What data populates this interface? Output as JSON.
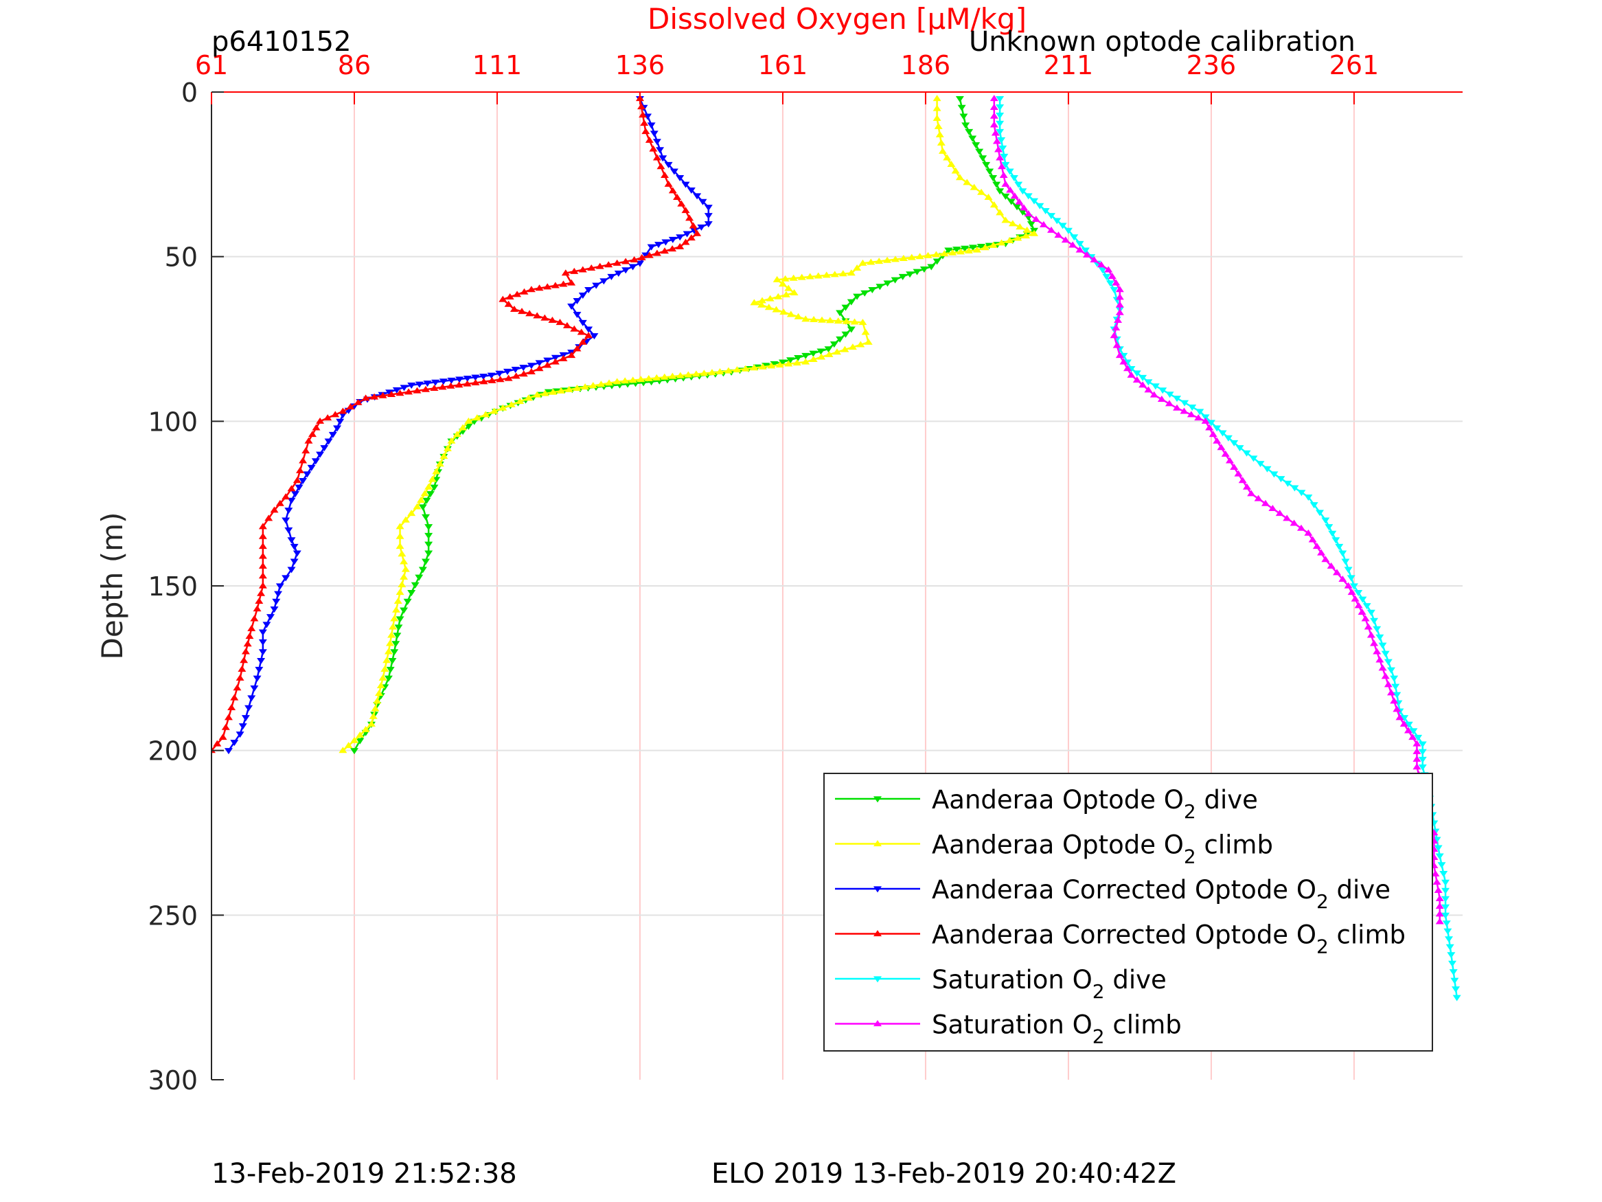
{
  "header": {
    "profile_id": "p6410152",
    "calibration_note": "Unknown optode calibration"
  },
  "footer": {
    "left_timestamp": "13-Feb-2019 21:52:38",
    "right_label": "ELO 2019 13-Feb-2019 20:40:42Z"
  },
  "chart_data": {
    "type": "line",
    "title": "",
    "xlabel": "Dissolved Oxygen [μM/kg]",
    "ylabel": "Depth (m)",
    "xlim": [
      61,
      280
    ],
    "ylim": [
      0,
      300
    ],
    "y_reversed": true,
    "x_axis_position": "top",
    "xticks": [
      61,
      86,
      111,
      136,
      161,
      186,
      211,
      236,
      261
    ],
    "yticks": [
      0,
      50,
      100,
      150,
      200,
      250,
      300
    ],
    "grid": true,
    "legend_position": "bottom-right",
    "series": [
      {
        "name": "Aanderaa Optode O2 dive",
        "legend_base": "Aanderaa Optode O",
        "legend_sub": "2",
        "legend_tail": " dive",
        "color": "#00e000",
        "marker": "triangle-down",
        "points": [
          [
            192,
            2
          ],
          [
            193,
            10
          ],
          [
            196,
            20
          ],
          [
            199,
            30
          ],
          [
            204,
            38
          ],
          [
            205,
            42
          ],
          [
            200,
            46
          ],
          [
            190,
            48
          ],
          [
            187,
            53
          ],
          [
            182,
            56
          ],
          [
            174,
            62
          ],
          [
            171,
            67
          ],
          [
            173,
            72
          ],
          [
            169,
            78
          ],
          [
            161,
            82
          ],
          [
            152,
            85
          ],
          [
            138,
            88
          ],
          [
            120,
            91
          ],
          [
            112,
            96
          ],
          [
            107,
            100
          ],
          [
            103,
            106
          ],
          [
            101,
            113
          ],
          [
            100,
            120
          ],
          [
            98,
            126
          ],
          [
            99,
            132
          ],
          [
            99,
            140
          ],
          [
            98,
            145
          ],
          [
            96,
            152
          ],
          [
            94,
            160
          ],
          [
            93,
            170
          ],
          [
            92,
            178
          ],
          [
            90,
            186
          ],
          [
            89,
            192
          ],
          [
            87,
            197
          ],
          [
            86,
            200
          ]
        ]
      },
      {
        "name": "Aanderaa Optode O2 climb",
        "legend_base": "Aanderaa Optode O",
        "legend_sub": "2",
        "legend_tail": " climb",
        "color": "#ffff00",
        "marker": "triangle-up",
        "points": [
          [
            84,
            200
          ],
          [
            86,
            197
          ],
          [
            89,
            192
          ],
          [
            90,
            185
          ],
          [
            91,
            178
          ],
          [
            92,
            170
          ],
          [
            93,
            160
          ],
          [
            94,
            152
          ],
          [
            95,
            145
          ],
          [
            94,
            138
          ],
          [
            94,
            132
          ],
          [
            97,
            126
          ],
          [
            99,
            120
          ],
          [
            101,
            113
          ],
          [
            103,
            106
          ],
          [
            106,
            100
          ],
          [
            112,
            96
          ],
          [
            118,
            92
          ],
          [
            132,
            88
          ],
          [
            150,
            85
          ],
          [
            165,
            82
          ],
          [
            176,
            76
          ],
          [
            175,
            70
          ],
          [
            165,
            69
          ],
          [
            156,
            64
          ],
          [
            163,
            61
          ],
          [
            160,
            57
          ],
          [
            173,
            55
          ],
          [
            175,
            52
          ],
          [
            195,
            48
          ],
          [
            205,
            43
          ],
          [
            200,
            39
          ],
          [
            197,
            32
          ],
          [
            192,
            26
          ],
          [
            189,
            18
          ],
          [
            188,
            8
          ],
          [
            188,
            2
          ]
        ]
      },
      {
        "name": "Aanderaa Corrected Optode O2 dive",
        "legend_base": "Aanderaa Corrected Optode O",
        "legend_sub": "2",
        "legend_tail": " dive",
        "color": "#0000ff",
        "marker": "triangle-down",
        "points": [
          [
            136,
            2
          ],
          [
            138,
            10
          ],
          [
            140,
            20
          ],
          [
            144,
            28
          ],
          [
            148,
            35
          ],
          [
            148,
            40
          ],
          [
            143,
            44
          ],
          [
            138,
            47
          ],
          [
            136,
            52
          ],
          [
            131,
            56
          ],
          [
            127,
            60
          ],
          [
            124,
            65
          ],
          [
            126,
            70
          ],
          [
            128,
            74
          ],
          [
            124,
            79
          ],
          [
            117,
            83
          ],
          [
            110,
            86
          ],
          [
            96,
            89
          ],
          [
            87,
            94
          ],
          [
            84,
            98
          ],
          [
            83,
            102
          ],
          [
            80,
            110
          ],
          [
            77,
            118
          ],
          [
            75,
            124
          ],
          [
            74,
            130
          ],
          [
            75,
            136
          ],
          [
            76,
            140
          ],
          [
            75,
            145
          ],
          [
            73,
            150
          ],
          [
            72,
            157
          ],
          [
            70,
            164
          ],
          [
            70,
            170
          ],
          [
            69,
            178
          ],
          [
            68,
            184
          ],
          [
            67,
            190
          ],
          [
            66,
            195
          ],
          [
            64,
            200
          ]
        ]
      },
      {
        "name": "Aanderaa Corrected Optode O2 climb",
        "legend_base": "Aanderaa Corrected Optode O",
        "legend_sub": "2",
        "legend_tail": " climb",
        "color": "#ff0000",
        "marker": "triangle-up",
        "points": [
          [
            61,
            200
          ],
          [
            63,
            196
          ],
          [
            64,
            190
          ],
          [
            65,
            184
          ],
          [
            66,
            178
          ],
          [
            67,
            170
          ],
          [
            68,
            163
          ],
          [
            69,
            157
          ],
          [
            70,
            150
          ],
          [
            70,
            144
          ],
          [
            70,
            138
          ],
          [
            70,
            132
          ],
          [
            72,
            127
          ],
          [
            74,
            123
          ],
          [
            76,
            118
          ],
          [
            77,
            112
          ],
          [
            78,
            106
          ],
          [
            80,
            100
          ],
          [
            84,
            97
          ],
          [
            88,
            93
          ],
          [
            100,
            90
          ],
          [
            113,
            87
          ],
          [
            117,
            85
          ],
          [
            124,
            80
          ],
          [
            127,
            74
          ],
          [
            122,
            70
          ],
          [
            114,
            66
          ],
          [
            112,
            63
          ],
          [
            117,
            60
          ],
          [
            124,
            58
          ],
          [
            123,
            55
          ],
          [
            135,
            51
          ],
          [
            143,
            47
          ],
          [
            146,
            43
          ],
          [
            144,
            36
          ],
          [
            141,
            28
          ],
          [
            139,
            20
          ],
          [
            137,
            12
          ],
          [
            136,
            2
          ]
        ]
      },
      {
        "name": "Saturation O2 dive",
        "legend_base": "Saturation O",
        "legend_sub": "2",
        "legend_tail": " dive",
        "color": "#00ffff",
        "marker": "triangle-down",
        "points": [
          [
            199,
            2
          ],
          [
            199,
            12
          ],
          [
            200,
            22
          ],
          [
            203,
            30
          ],
          [
            207,
            36
          ],
          [
            211,
            42
          ],
          [
            214,
            48
          ],
          [
            217,
            54
          ],
          [
            219,
            60
          ],
          [
            220,
            66
          ],
          [
            219,
            72
          ],
          [
            220,
            78
          ],
          [
            222,
            84
          ],
          [
            225,
            88
          ],
          [
            230,
            93
          ],
          [
            234,
            97
          ],
          [
            237,
            102
          ],
          [
            241,
            108
          ],
          [
            247,
            116
          ],
          [
            253,
            123
          ],
          [
            256,
            130
          ],
          [
            259,
            140
          ],
          [
            261,
            150
          ],
          [
            264,
            158
          ],
          [
            266,
            168
          ],
          [
            268,
            178
          ],
          [
            269,
            188
          ],
          [
            273,
            198
          ],
          [
            273,
            205
          ],
          [
            274,
            212
          ],
          [
            275,
            222
          ],
          [
            276,
            232
          ],
          [
            277,
            240
          ],
          [
            277,
            250
          ],
          [
            278,
            262
          ],
          [
            279,
            275
          ]
        ]
      },
      {
        "name": "Saturation O2 climb",
        "legend_base": "Saturation O",
        "legend_sub": "2",
        "legend_tail": " climb",
        "color": "#ff00ff",
        "marker": "triangle-up",
        "points": [
          [
            276,
            252
          ],
          [
            276,
            245
          ],
          [
            275,
            235
          ],
          [
            275,
            225
          ],
          [
            273,
            220
          ],
          [
            273,
            212
          ],
          [
            272,
            205
          ],
          [
            272,
            198
          ],
          [
            269,
            190
          ],
          [
            267,
            180
          ],
          [
            265,
            170
          ],
          [
            263,
            160
          ],
          [
            260,
            150
          ],
          [
            256,
            142
          ],
          [
            253,
            134
          ],
          [
            248,
            128
          ],
          [
            243,
            122
          ],
          [
            240,
            114
          ],
          [
            237,
            106
          ],
          [
            235,
            100
          ],
          [
            230,
            96
          ],
          [
            226,
            92
          ],
          [
            222,
            86
          ],
          [
            220,
            80
          ],
          [
            219,
            74
          ],
          [
            220,
            67
          ],
          [
            220,
            60
          ],
          [
            218,
            54
          ],
          [
            213,
            48
          ],
          [
            208,
            42
          ],
          [
            204,
            37
          ],
          [
            200,
            28
          ],
          [
            199,
            20
          ],
          [
            198,
            10
          ],
          [
            198,
            2
          ]
        ]
      }
    ]
  }
}
